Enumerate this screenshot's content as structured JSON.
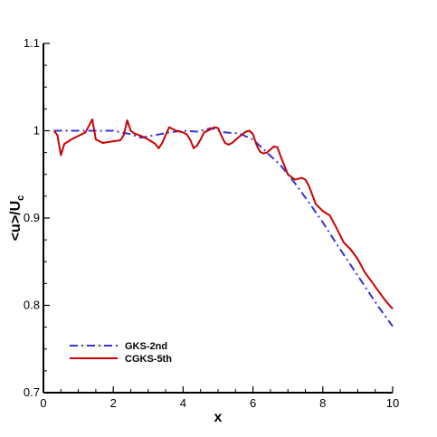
{
  "chart_data": {
    "type": "line",
    "title": "",
    "xlabel": "x",
    "ylabel": "<u>/U",
    "ylabel_subscript": "c",
    "xlim": [
      0,
      10
    ],
    "ylim": [
      0.7,
      1.1
    ],
    "xticks": [
      "0",
      "2",
      "4",
      "6",
      "8",
      "10"
    ],
    "yticks": [
      "0.7",
      "0.8",
      "0.9",
      "1",
      "1.1"
    ],
    "grid": false,
    "legend_position": "bottom-left",
    "series": [
      {
        "name": "GKS-2nd",
        "color": "#3333dd",
        "style": "dashdot",
        "x": [
          0.3,
          0.6,
          1.0,
          1.5,
          2.0,
          2.5,
          2.8,
          3.2,
          3.6,
          4.0,
          4.4,
          4.8,
          5.2,
          5.6,
          6.0,
          6.4,
          6.8,
          7.2,
          7.6,
          8.0,
          8.4,
          8.8,
          9.2,
          9.6,
          10.0
        ],
        "y": [
          1.0,
          1.0,
          1.0,
          1.0,
          1.0,
          0.996,
          0.992,
          0.995,
          0.998,
          1.0,
          0.999,
          1.003,
          0.998,
          0.997,
          0.99,
          0.975,
          0.96,
          0.94,
          0.918,
          0.895,
          0.87,
          0.846,
          0.822,
          0.798,
          0.776
        ]
      },
      {
        "name": "CGKS-5th",
        "color": "#cc0000",
        "style": "solid",
        "x": [
          0.3,
          0.4,
          0.5,
          0.6,
          0.8,
          1.0,
          1.2,
          1.4,
          1.5,
          1.7,
          2.0,
          2.2,
          2.3,
          2.4,
          2.5,
          2.6,
          2.8,
          3.0,
          3.2,
          3.3,
          3.4,
          3.6,
          3.8,
          4.0,
          4.1,
          4.2,
          4.3,
          4.4,
          4.5,
          4.6,
          4.8,
          4.9,
          5.0,
          5.1,
          5.2,
          5.3,
          5.4,
          5.6,
          5.8,
          5.9,
          6.0,
          6.1,
          6.2,
          6.3,
          6.4,
          6.6,
          6.7,
          6.8,
          7.0,
          7.2,
          7.4,
          7.5,
          7.6,
          7.8,
          8.0,
          8.2,
          8.4,
          8.6,
          8.8,
          9.0,
          9.2,
          9.4,
          9.6,
          9.8,
          10.0
        ],
        "y": [
          1.0,
          0.995,
          0.972,
          0.985,
          0.99,
          0.994,
          0.998,
          1.013,
          0.99,
          0.986,
          0.988,
          0.989,
          0.995,
          1.012,
          1.0,
          0.997,
          0.994,
          0.99,
          0.985,
          0.98,
          0.986,
          1.004,
          1.0,
          0.998,
          0.996,
          0.99,
          0.98,
          0.983,
          0.99,
          0.998,
          1.002,
          1.004,
          1.003,
          0.994,
          0.986,
          0.984,
          0.986,
          0.993,
          0.999,
          1.0,
          0.996,
          0.984,
          0.976,
          0.974,
          0.975,
          0.982,
          0.981,
          0.97,
          0.95,
          0.944,
          0.946,
          0.944,
          0.937,
          0.916,
          0.908,
          0.903,
          0.888,
          0.872,
          0.864,
          0.853,
          0.838,
          0.827,
          0.816,
          0.805,
          0.796
        ]
      }
    ]
  }
}
